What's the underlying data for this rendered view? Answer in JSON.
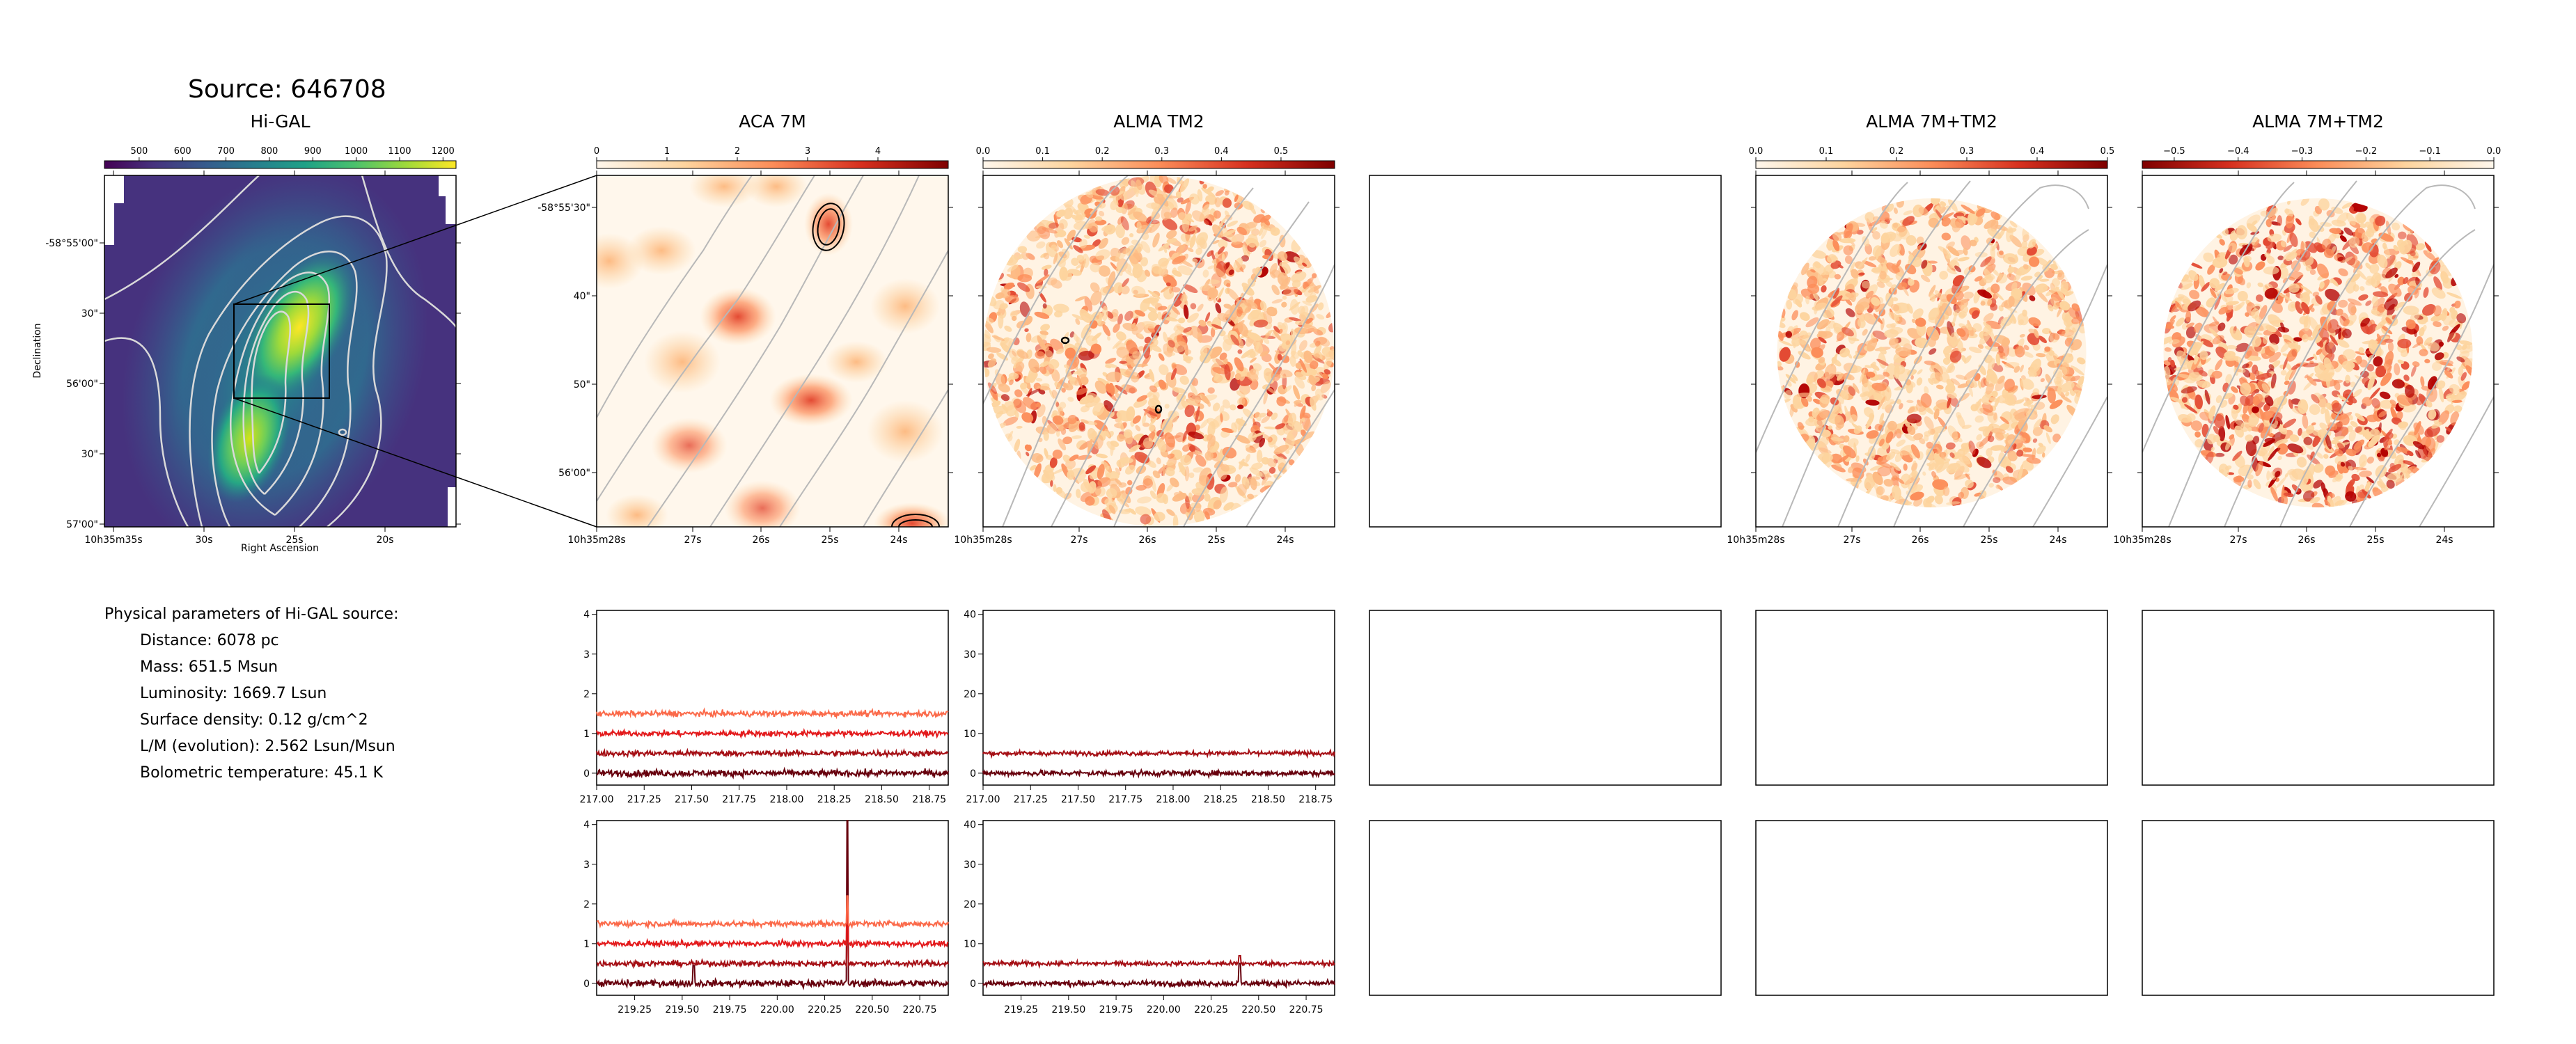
{
  "figure": {
    "title": "Source: 646708"
  },
  "params": {
    "heading": "Physical parameters of Hi-GAL source:",
    "lines": [
      "Distance: 6078 pc",
      "Mass: 651.5 Msun",
      "Luminosity: 1669.7 Lsun",
      "Surface density: 0.12 g/cm^2",
      "L/M (evolution): 2.562 Lsun/Msun",
      "Bolometric temperature: 45.1 K"
    ]
  },
  "colors": {
    "viridis_low": "#440154",
    "viridis_high": "#fde725",
    "spec_dark": "#67000d",
    "spec_mid": "#a50f15",
    "spec_red": "#e31a1c",
    "spec_light": "#fb6a4a"
  },
  "chart_data": [
    {
      "type": "heatmap",
      "title": "Hi-GAL",
      "xlabel": "Right Ascension",
      "ylabel": "Declination",
      "xticks": [
        "10h35m35s",
        "30s",
        "25s",
        "20s"
      ],
      "yticks": [
        "-58°55'00\"",
        "30\"",
        "56'00\"",
        "30\"",
        "57'00\""
      ],
      "colorbar": {
        "cmap": "viridis",
        "ticks": [
          "500",
          "600",
          "700",
          "800",
          "900",
          "1000",
          "1100",
          "1200"
        ],
        "range": [
          420,
          1230
        ]
      }
    },
    {
      "type": "heatmap",
      "title": "ACA 7M",
      "xticks": [
        "10h35m28s",
        "27s",
        "26s",
        "25s",
        "24s"
      ],
      "yticks": [
        "-58°55'30\"",
        "40\"",
        "50\"",
        "56'00\""
      ],
      "colorbar": {
        "cmap": "OrRd",
        "ticks": [
          "0",
          "1",
          "2",
          "3",
          "4"
        ],
        "range": [
          0,
          5
        ]
      }
    },
    {
      "type": "heatmap",
      "title": "ALMA TM2",
      "xticks": [
        "10h35m28s",
        "27s",
        "26s",
        "25s",
        "24s"
      ],
      "colorbar": {
        "cmap": "OrRd",
        "ticks": [
          "0.0",
          "0.1",
          "0.2",
          "0.3",
          "0.4",
          "0.5"
        ],
        "range": [
          0,
          0.59
        ]
      }
    },
    {
      "type": "heatmap",
      "title": "ALMA 7M+TM2",
      "xticks": [
        "10h35m28s",
        "27s",
        "26s",
        "25s",
        "24s"
      ],
      "colorbar": {
        "cmap": "OrRd",
        "ticks": [
          "0.0",
          "0.1",
          "0.2",
          "0.3",
          "0.4",
          "0.5"
        ],
        "range": [
          0,
          0.5
        ]
      }
    },
    {
      "type": "heatmap",
      "title": "ALMA 7M+TM2",
      "xticks": [
        "10h35m28s",
        "27s",
        "26s",
        "25s",
        "24s"
      ],
      "colorbar": {
        "cmap": "OrRd_r",
        "ticks": [
          "−0.5",
          "−0.4",
          "−0.3",
          "−0.2",
          "−0.1",
          "0.0"
        ],
        "range": [
          -0.55,
          0
        ]
      }
    },
    {
      "type": "line",
      "panel": "ACA 7M spectra lower sideband",
      "xlim": [
        217.0,
        218.85
      ],
      "ylim": [
        -0.3,
        4.1
      ],
      "xticks": [
        "217.00",
        "217.25",
        "217.50",
        "217.75",
        "218.00",
        "218.25",
        "218.50",
        "218.75"
      ],
      "yticks": [
        "0",
        "1",
        "2",
        "3",
        "4"
      ],
      "series": [
        {
          "offset": 0.0,
          "noise": 0.06,
          "color": "#67000d"
        },
        {
          "offset": 0.5,
          "noise": 0.05,
          "color": "#a50f15"
        },
        {
          "offset": 1.0,
          "noise": 0.05,
          "color": "#e31a1c"
        },
        {
          "offset": 1.5,
          "noise": 0.05,
          "color": "#fb6a4a"
        }
      ]
    },
    {
      "type": "line",
      "panel": "ALMA TM2 spectra lower sideband",
      "xlim": [
        217.0,
        218.85
      ],
      "ylim": [
        -3,
        41
      ],
      "xticks": [
        "217.00",
        "217.25",
        "217.50",
        "217.75",
        "218.00",
        "218.25",
        "218.50",
        "218.75"
      ],
      "yticks": [
        "0",
        "10",
        "20",
        "30",
        "40"
      ],
      "series": [
        {
          "offset": 0,
          "noise": 0.5,
          "color": "#67000d"
        },
        {
          "offset": 5,
          "noise": 0.4,
          "color": "#a50f15"
        }
      ]
    },
    {
      "type": "line",
      "panel": "ACA 7M spectra upper sideband",
      "xlim": [
        219.05,
        220.9
      ],
      "ylim": [
        -0.3,
        4.1
      ],
      "xticks": [
        "219.25",
        "219.50",
        "219.75",
        "220.00",
        "220.25",
        "220.50",
        "220.75"
      ],
      "yticks": [
        "0",
        "1",
        "2",
        "3",
        "4"
      ],
      "series": [
        {
          "offset": 0.0,
          "noise": 0.06,
          "color": "#67000d",
          "peaks": [
            [
              220.37,
              4.2
            ],
            [
              219.56,
              0.45
            ]
          ]
        },
        {
          "offset": 0.5,
          "noise": 0.05,
          "color": "#a50f15",
          "peaks": [
            [
              220.37,
              1.2
            ]
          ]
        },
        {
          "offset": 1.0,
          "noise": 0.05,
          "color": "#e31a1c",
          "peaks": [
            [
              220.37,
              1.2
            ]
          ]
        },
        {
          "offset": 1.5,
          "noise": 0.05,
          "color": "#fb6a4a",
          "peaks": [
            [
              220.37,
              0.7
            ]
          ]
        }
      ]
    },
    {
      "type": "line",
      "panel": "ALMA TM2 spectra upper sideband",
      "xlim": [
        219.05,
        220.9
      ],
      "ylim": [
        -3,
        41
      ],
      "xticks": [
        "219.25",
        "219.50",
        "219.75",
        "220.00",
        "220.25",
        "220.50",
        "220.75"
      ],
      "yticks": [
        "0",
        "10",
        "20",
        "30",
        "40"
      ],
      "series": [
        {
          "offset": 0,
          "noise": 0.5,
          "color": "#67000d",
          "peaks": [
            [
              220.4,
              5
            ]
          ]
        },
        {
          "offset": 5,
          "noise": 0.4,
          "color": "#a50f15",
          "peaks": [
            [
              220.4,
              2
            ]
          ]
        }
      ]
    }
  ]
}
